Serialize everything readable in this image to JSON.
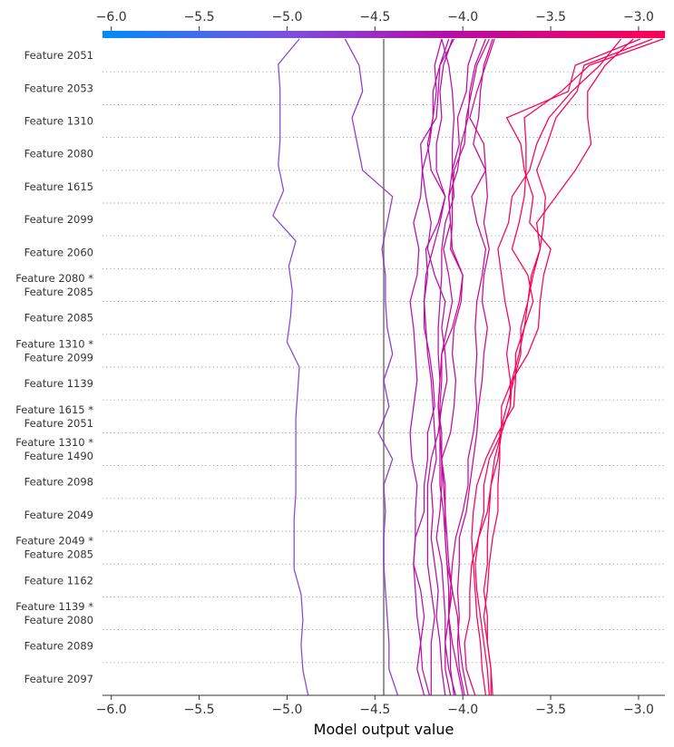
{
  "chart_data": {
    "type": "line",
    "subtype": "decision-plot",
    "xlabel": "Model output value",
    "xlim": [
      -6.05,
      -2.85
    ],
    "xticks": [
      -6.0,
      -5.5,
      -5.0,
      -4.5,
      -4.0,
      -3.5,
      -3.0
    ],
    "xtick_labels": [
      "−6.0",
      "−5.5",
      "−5.0",
      "−4.5",
      "−4.0",
      "−3.5",
      "−3.0"
    ],
    "base_value": -4.45,
    "colorbar": {
      "min": -6.05,
      "max": -2.85,
      "colors": [
        "#008bfb",
        "#7d4fe0",
        "#b70da5",
        "#ff0052"
      ]
    },
    "features": [
      [
        "Feature 2051"
      ],
      [
        "Feature 2053"
      ],
      [
        "Feature 1310"
      ],
      [
        "Feature 2080"
      ],
      [
        "Feature 1615"
      ],
      [
        "Feature 2099"
      ],
      [
        "Feature 2060"
      ],
      [
        "Feature 2080 *",
        "Feature 2085"
      ],
      [
        "Feature 2085"
      ],
      [
        "Feature 1310 *",
        "Feature 2099"
      ],
      [
        "Feature 1139"
      ],
      [
        "Feature 1615 *",
        "Feature 2051"
      ],
      [
        "Feature 1310 *",
        "Feature 1490"
      ],
      [
        "Feature 2098"
      ],
      [
        "Feature 2049"
      ],
      [
        "Feature 2049 *",
        "Feature 2085"
      ],
      [
        "Feature 1162"
      ],
      [
        "Feature 1139 *",
        "Feature 2080"
      ],
      [
        "Feature 2089"
      ],
      [
        "Feature 2097"
      ]
    ],
    "series": [
      {
        "values": [
          -4.88,
          -4.91,
          -4.92,
          -4.91,
          -4.92,
          -4.96,
          -4.96,
          -4.96,
          -4.95,
          -4.95,
          -4.95,
          -4.95,
          -4.94,
          -4.93,
          -5.0,
          -4.98,
          -4.97,
          -4.99,
          -4.95,
          -5.08,
          -5.02,
          -5.05,
          -5.04,
          -5.04,
          -5.04,
          -5.05,
          -4.93
        ]
      },
      {
        "values": [
          -4.37,
          -4.42,
          -4.42,
          -4.43,
          -4.44,
          -4.45,
          -4.45,
          -4.44,
          -4.45,
          -4.4,
          -4.48,
          -4.42,
          -4.45,
          -4.4,
          -4.43,
          -4.44,
          -4.44,
          -4.46,
          -4.43,
          -4.4,
          -4.57,
          -4.6,
          -4.63,
          -4.57,
          -4.59,
          -4.67
        ]
      },
      {
        "values": [
          -4.19,
          -4.23,
          -4.24,
          -4.26,
          -4.27,
          -4.28,
          -4.27,
          -4.27,
          -4.26,
          -4.29,
          -4.3,
          -4.28,
          -4.26,
          -4.27,
          -4.28,
          -4.3,
          -4.26,
          -4.25,
          -4.28,
          -4.24,
          -4.23,
          -4.19,
          -4.17,
          -4.15,
          -4.16,
          -4.12
        ]
      },
      {
        "values": [
          -4.22,
          -4.26,
          -4.24,
          -4.22,
          -4.24,
          -4.28,
          -4.27,
          -4.22,
          -4.22,
          -4.2,
          -4.2,
          -4.16,
          -4.17,
          -4.19,
          -4.22,
          -4.22,
          -4.2,
          -4.21,
          -4.14,
          -4.1,
          -4.15,
          -4.15,
          -4.12,
          -4.13,
          -4.11,
          -4.06
        ]
      },
      {
        "values": [
          -4.18,
          -4.18,
          -4.18,
          -4.16,
          -4.18,
          -4.2,
          -4.2,
          -4.2,
          -4.2,
          -4.18,
          -4.14,
          -4.12,
          -4.09,
          -4.1,
          -4.12,
          -4.1,
          -4.16,
          -4.2,
          -4.18,
          -4.21,
          -4.23,
          -4.24,
          -4.15,
          -4.14,
          -4.13,
          -4.08
        ]
      },
      {
        "values": [
          -4.1,
          -4.12,
          -4.13,
          -4.15,
          -4.14,
          -4.16,
          -4.18,
          -4.17,
          -4.18,
          -4.15,
          -4.16,
          -4.17,
          -4.18,
          -4.2,
          -4.21,
          -4.22,
          -4.21,
          -4.17,
          -4.13,
          -4.1,
          -4.18,
          -4.2,
          -4.17,
          -4.17,
          -4.13,
          -4.05
        ]
      },
      {
        "values": [
          -4.04,
          -4.08,
          -4.1,
          -4.1,
          -4.11,
          -4.12,
          -4.15,
          -4.13,
          -4.12,
          -4.12,
          -4.12,
          -4.14,
          -4.13,
          -4.14,
          -4.14,
          -4.13,
          -4.12,
          -4.12,
          -4.1,
          -4.05,
          -4.06,
          -4.06,
          -4.05,
          -4.06,
          -4.08,
          -4.12
        ]
      },
      {
        "values": [
          -4.05,
          -4.07,
          -4.07,
          -4.08,
          -4.08,
          -4.09,
          -4.1,
          -4.11,
          -4.13,
          -4.13,
          -4.13,
          -4.14,
          -4.13,
          -4.12,
          -4.06,
          -4.02,
          -4.0,
          -4.06,
          -4.07,
          -4.08,
          -4.06,
          -4.02,
          -4.03,
          -3.98,
          -3.97,
          -3.92
        ]
      },
      {
        "values": [
          -4.0,
          -4.03,
          -4.06,
          -4.08,
          -4.06,
          -4.09,
          -4.1,
          -4.1,
          -4.11,
          -4.12,
          -4.13,
          -4.13,
          -4.12,
          -4.12,
          -4.09,
          -4.06,
          -4.08,
          -4.11,
          -4.07,
          -4.08,
          -4.03,
          -4.01,
          -3.97,
          -3.96,
          -3.93,
          -3.87
        ]
      },
      {
        "values": [
          -3.97,
          -4.0,
          -4.02,
          -4.03,
          -4.06,
          -4.08,
          -4.09,
          -4.1,
          -4.1,
          -4.12,
          -4.07,
          -4.05,
          -4.04,
          -4.06,
          -4.05,
          -4.01,
          -4.0,
          -4.07,
          -4.06,
          -4.06,
          -4.05,
          -3.99,
          -3.98,
          -3.95,
          -3.92,
          -3.85
        ]
      },
      {
        "values": [
          -4.07,
          -4.1,
          -4.1,
          -4.08,
          -4.07,
          -4.06,
          -4.04,
          -4.0,
          -3.97,
          -3.97,
          -3.94,
          -3.92,
          -3.93,
          -3.92,
          -3.93,
          -3.92,
          -3.89,
          -3.87,
          -3.92,
          -3.95,
          -3.87,
          -3.88,
          -3.96,
          -3.92,
          -3.87,
          -3.82
        ]
      },
      {
        "values": [
          -3.99,
          -4.02,
          -4.03,
          -4.02,
          -4.03,
          -4.02,
          -4.02,
          -3.98,
          -3.96,
          -3.94,
          -3.92,
          -3.91,
          -3.89,
          -3.88,
          -3.86,
          -3.89,
          -3.88,
          -3.85,
          -3.88,
          -3.86,
          -3.87,
          -3.94,
          -3.91,
          -3.9,
          -3.88,
          -3.83
        ]
      },
      {
        "values": [
          -3.93,
          -3.98,
          -3.99,
          -3.96,
          -3.96,
          -3.95,
          -3.91,
          -3.86,
          -3.84,
          -3.8,
          -3.78,
          -3.73,
          -3.73,
          -3.75,
          -3.73,
          -3.76,
          -3.78,
          -3.8,
          -3.74,
          -3.72,
          -3.62,
          -3.58,
          -3.51,
          -3.38,
          -3.22,
          -3.1
        ]
      },
      {
        "values": [
          -3.83,
          -3.84,
          -3.86,
          -3.88,
          -3.86,
          -3.85,
          -3.83,
          -3.8,
          -3.8,
          -3.79,
          -3.79,
          -3.75,
          -3.71,
          -3.67,
          -3.67,
          -3.63,
          -3.6,
          -3.56,
          -3.58,
          -3.47,
          -3.36,
          -3.27,
          -3.29,
          -3.29,
          -3.19,
          -3.03
        ]
      },
      {
        "values": [
          -3.84,
          -3.84,
          -3.86,
          -3.86,
          -3.88,
          -3.86,
          -3.86,
          -3.85,
          -3.84,
          -3.82,
          -3.78,
          -3.73,
          -3.72,
          -3.68,
          -3.65,
          -3.63,
          -3.61,
          -3.56,
          -3.54,
          -3.53,
          -3.58,
          -3.52,
          -3.47,
          -3.35,
          -3.31,
          -2.92
        ]
      },
      {
        "values": [
          -3.85,
          -3.86,
          -3.88,
          -3.9,
          -3.92,
          -3.93,
          -3.91,
          -3.88,
          -3.88,
          -3.85,
          -3.78,
          -3.78,
          -3.72,
          -3.63,
          -3.57,
          -3.56,
          -3.54,
          -3.5,
          -3.62,
          -3.6,
          -3.65,
          -3.67,
          -3.75,
          -3.4,
          -3.36,
          -2.99
        ]
      },
      {
        "values": [
          -3.87,
          -3.89,
          -3.9,
          -3.92,
          -3.93,
          -3.94,
          -3.95,
          -3.94,
          -3.92,
          -3.87,
          -3.8,
          -3.71,
          -3.7,
          -3.7,
          -3.65,
          -3.6,
          -3.63,
          -3.72,
          -3.68,
          -3.65,
          -3.64,
          -3.64,
          -3.65,
          -3.44,
          -3.28,
          -2.86
        ]
      }
    ]
  }
}
